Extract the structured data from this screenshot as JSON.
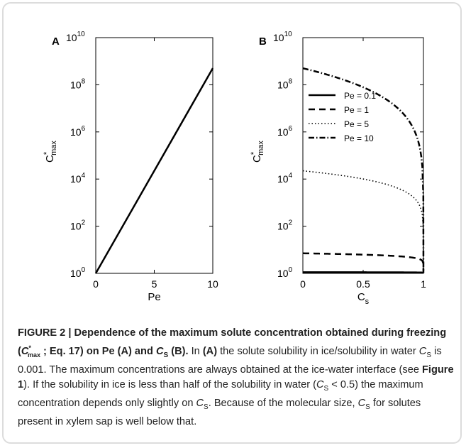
{
  "chart_data": [
    {
      "panel_label": "A",
      "type": "line",
      "ylabel_main": "C",
      "ylabel_super": "*",
      "ylabel_sub": "max",
      "xlabel": "Pe",
      "yscale": "log",
      "xlim": [
        0,
        10
      ],
      "ylim_exp": [
        0,
        10
      ],
      "x_ticks": [
        "0",
        "5",
        "10"
      ],
      "y_ticks_exp": [
        "0",
        "2",
        "4",
        "6",
        "8",
        "10"
      ],
      "y_tick_base": "10",
      "series": [
        {
          "x": [
            0,
            10
          ],
          "y_exp": [
            0,
            8.7
          ],
          "style": "solid"
        }
      ]
    },
    {
      "panel_label": "B",
      "type": "line",
      "ylabel_main": "C",
      "ylabel_super": "*",
      "ylabel_sub": "max",
      "xlabel_main": "C",
      "xlabel_sub": "s",
      "yscale": "log",
      "xlim": [
        0,
        1
      ],
      "ylim_exp": [
        0,
        10
      ],
      "x_ticks": [
        "0",
        "0.5",
        "1"
      ],
      "y_ticks_exp": [
        "0",
        "2",
        "4",
        "6",
        "8",
        "10"
      ],
      "y_tick_base": "10",
      "legend_position": "upper-left",
      "series": [
        {
          "name": "Pe = 0.1",
          "style": "solid",
          "Pe": 0.1
        },
        {
          "name": "Pe = 1",
          "style": "dashed",
          "Pe": 1
        },
        {
          "name": "Pe = 5",
          "style": "dotted",
          "Pe": 5
        },
        {
          "name": "Pe = 10",
          "style": "dashdot",
          "Pe": 10
        }
      ]
    }
  ],
  "caption": {
    "heading": "FIGURE 2 | Dependence of the maximum solute concentration obtained during freezing (",
    "heading_symbol_main": "C",
    "heading_symbol_super": "*",
    "heading_symbol_sub": "max",
    "heading_mid": " ; Eq. 17) on Pe (A) and ",
    "heading_cs_main": "C",
    "heading_cs_sub": "S",
    "heading_end": " (B).",
    "t1": " In ",
    "t1_bold": "(A)",
    "t2": " the solute solubility in ice/solubility in water ",
    "cs_main": "C",
    "cs_sub": "S",
    "t3": " is 0.001. The maximum concentrations are always obtained at the ice-water interface (see ",
    "t3_bold": "Figure 1",
    "t4": "). If the solubility in ice is less than half of the solubility in water (",
    "t5": " < 0.5) the maximum concentration depends only slightly on ",
    "t6": ". Because of the molecular size, ",
    "t7": " for solutes present in xylem sap is well below that."
  }
}
